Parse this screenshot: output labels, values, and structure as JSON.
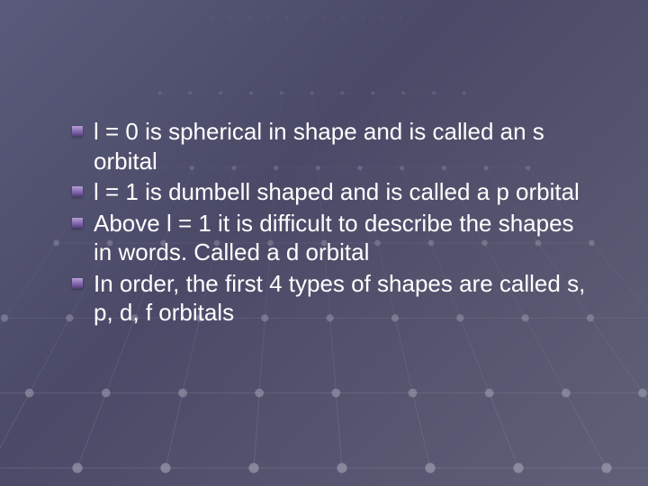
{
  "slide": {
    "background_colors": [
      "#5a5a7a",
      "#4a4a68",
      "#55556f",
      "#606078"
    ],
    "text_color": "#ffffff",
    "bullet_color": "#9478c0",
    "font_size": 26,
    "grid": {
      "node_color": "#b8b8c8",
      "line_color": "#8888a0",
      "node_radius": 4
    },
    "bullets": [
      "l = 0 is spherical in shape and is called an s orbital",
      "l = 1 is dumbell shaped and is called a p orbital",
      "Above l = 1 it is difficult to describe the shapes in words.  Called a d orbital",
      "In order, the first 4 types of shapes are called s, p, d, f orbitals"
    ]
  }
}
